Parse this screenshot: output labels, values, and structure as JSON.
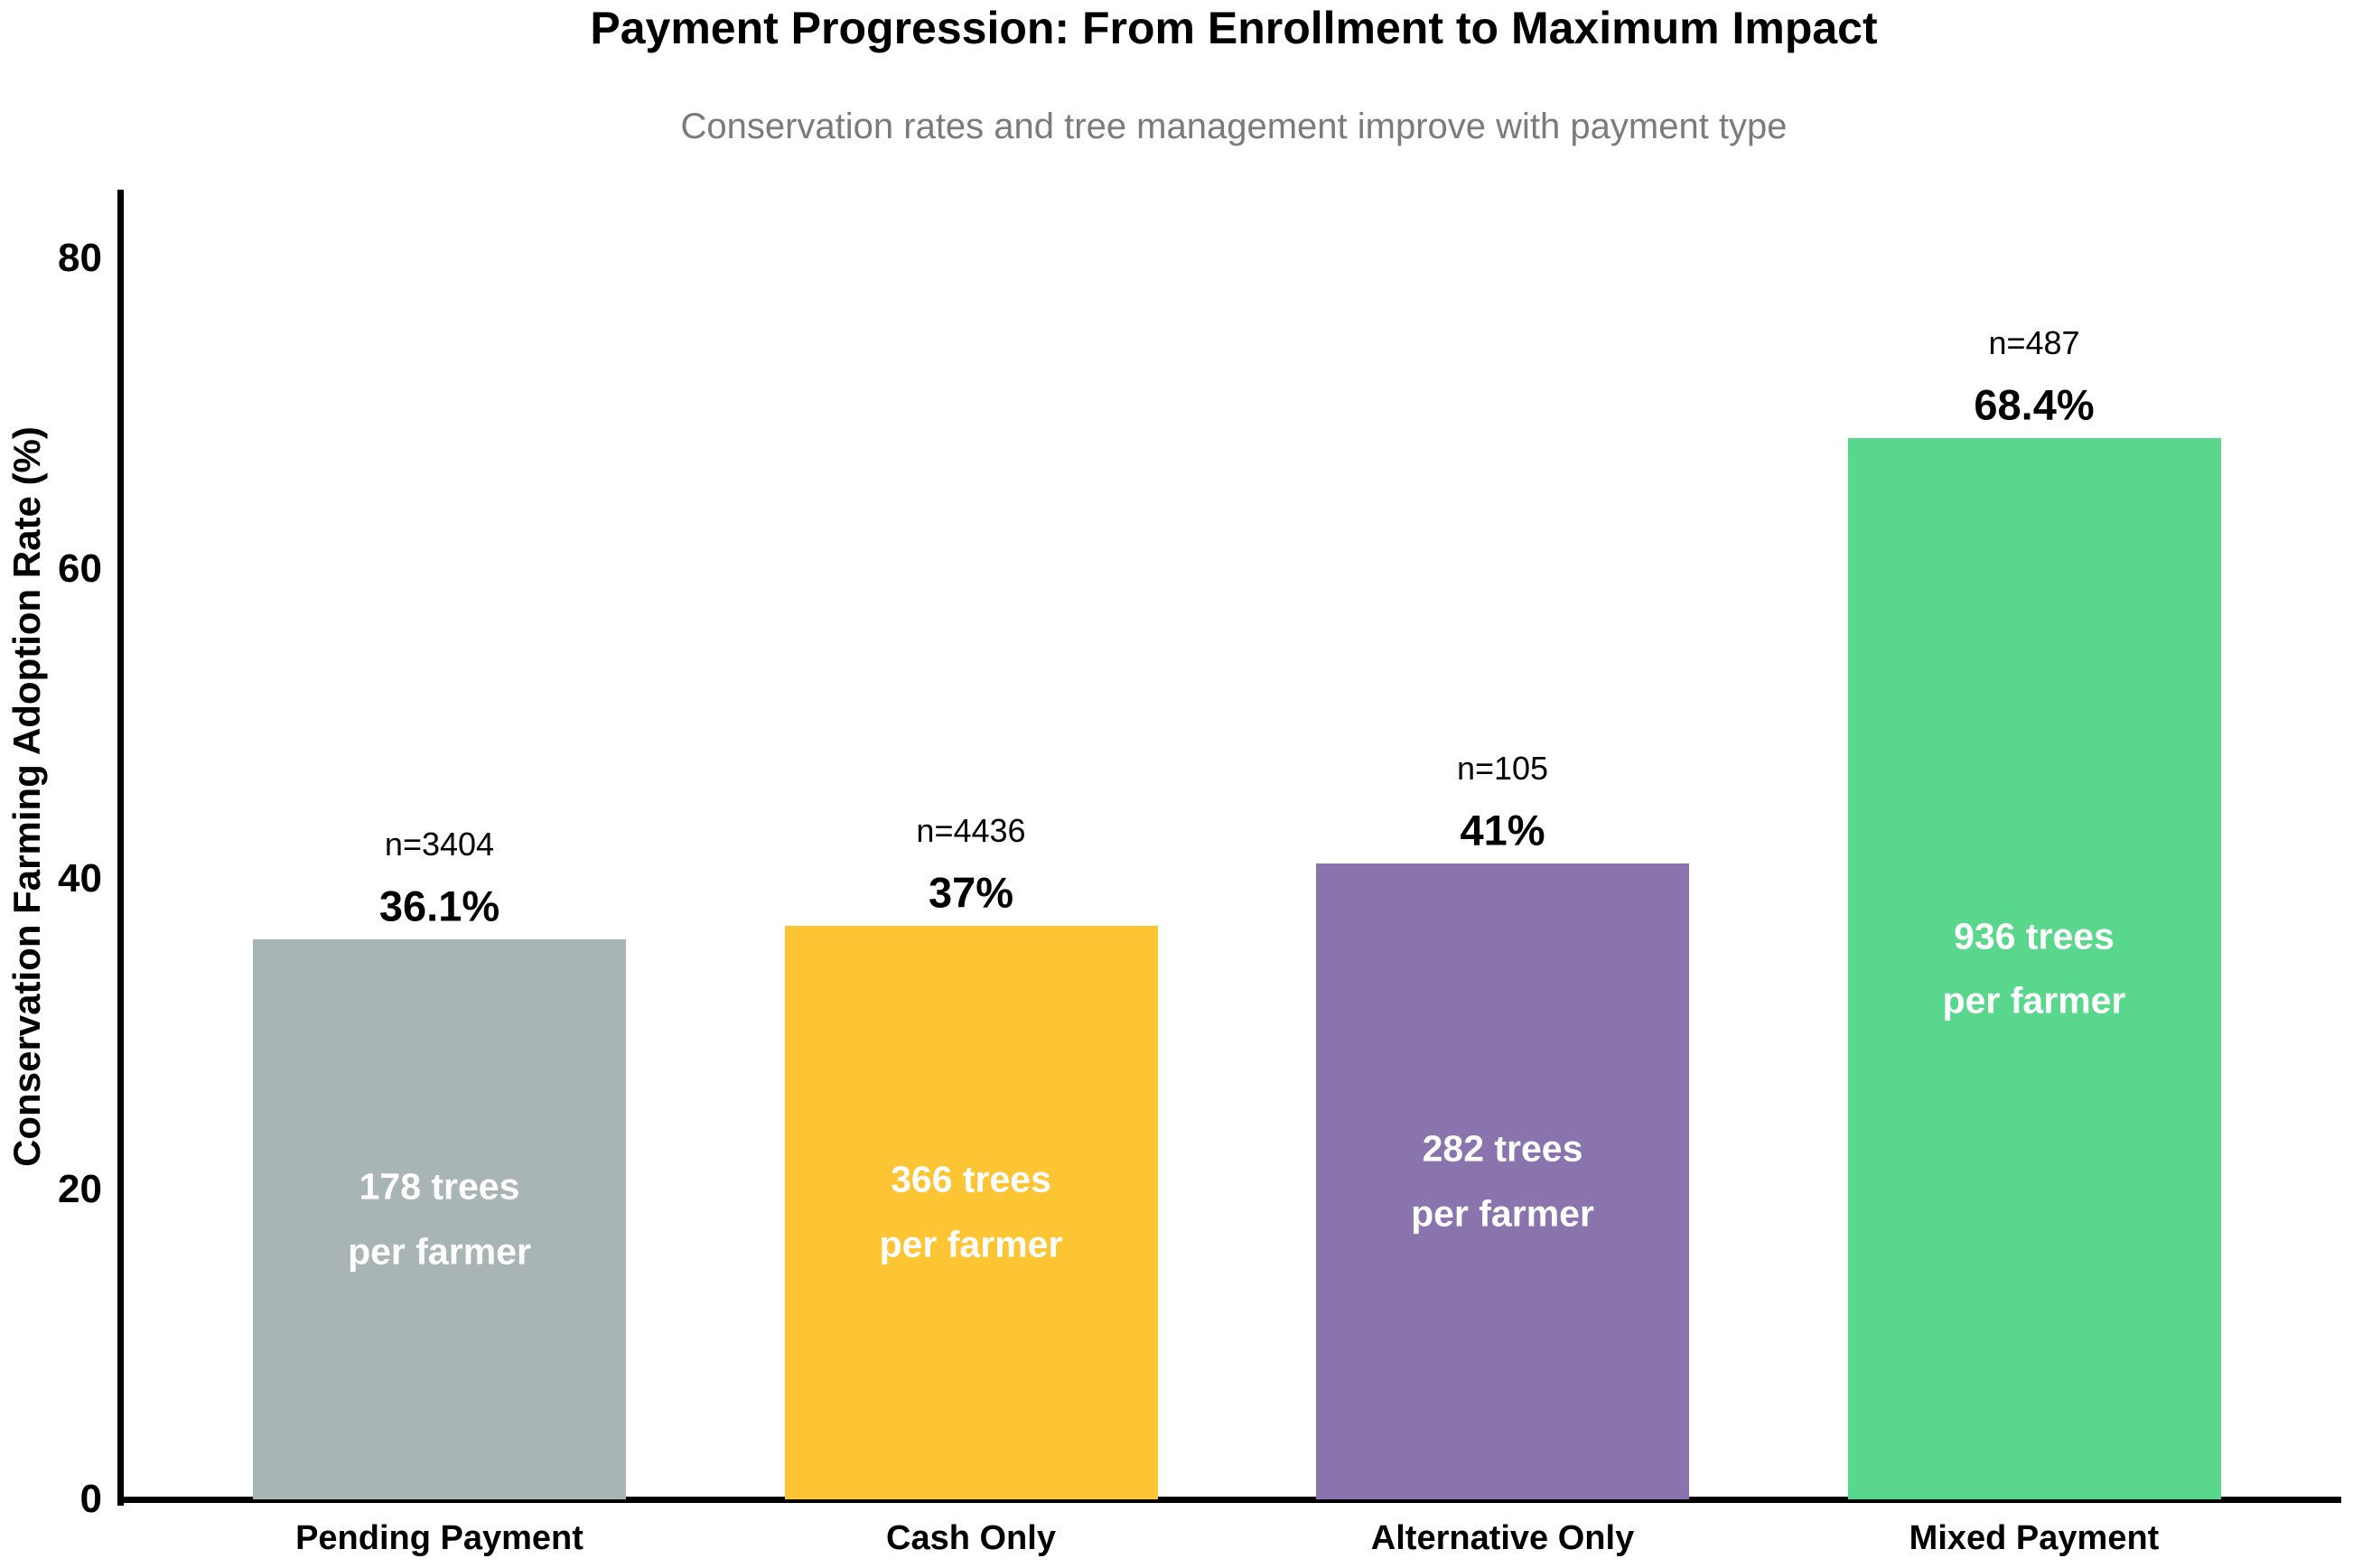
{
  "chart_data": {
    "type": "bar",
    "title": "Payment Progression: From Enrollment to Maximum Impact",
    "subtitle": "Conservation rates and tree management improve with payment type",
    "ylabel": "Conservation Farming Adoption Rate (%)",
    "xlabel": "",
    "ylim": [
      0,
      85
    ],
    "yticks": [
      0,
      20,
      40,
      60,
      80
    ],
    "grid": false,
    "legend": false,
    "categories": [
      "Pending Payment",
      "Cash Only",
      "Alternative Only",
      "Mixed Payment"
    ],
    "series": [
      {
        "name": "Conservation Farming Adoption Rate (%)",
        "values": [
          36.1,
          37,
          41,
          68.4
        ]
      }
    ],
    "bars": [
      {
        "category": "Pending Payment",
        "value": 36.1,
        "value_label": "36.1%",
        "n": 3404,
        "n_label": "n=3404",
        "trees_per_farmer": 178,
        "inner_label": "178 trees\nper farmer",
        "color": "#A9B5B5"
      },
      {
        "category": "Cash Only",
        "value": 37,
        "value_label": "37%",
        "n": 4436,
        "n_label": "n=4436",
        "trees_per_farmer": 366,
        "inner_label": "366 trees\nper farmer",
        "color": "#FDC433"
      },
      {
        "category": "Alternative Only",
        "value": 41,
        "value_label": "41%",
        "n": 105,
        "n_label": "n=105",
        "trees_per_farmer": 282,
        "inner_label": "282 trees\nper farmer",
        "color": "#8A74AE"
      },
      {
        "category": "Mixed Payment",
        "value": 68.4,
        "value_label": "68.4%",
        "n": 487,
        "n_label": "n=487",
        "trees_per_farmer": 936,
        "inner_label": "936 trees\nper farmer",
        "color": "#59D78C"
      }
    ],
    "colors": {
      "subtitle_text": "#7B7B7B",
      "axis": "#000000",
      "inner_label_text": "#FFFFFF"
    }
  }
}
